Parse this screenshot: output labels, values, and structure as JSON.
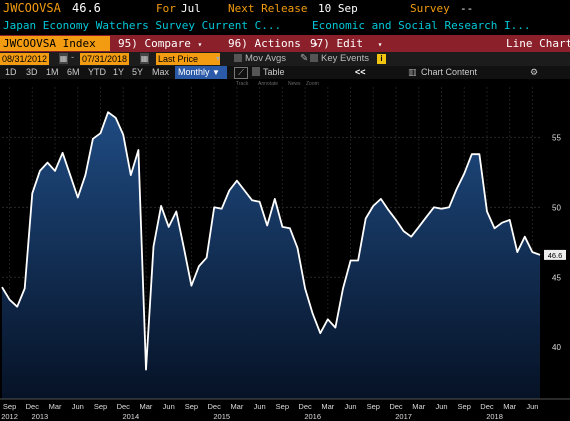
{
  "header": {
    "ticker": "JWCOOVSA",
    "last_value": "46.6",
    "for_label": "For",
    "for_period": "Jul",
    "next_release_label": "Next Release",
    "next_release_date": "10 Sep",
    "survey_label": "Survey",
    "survey_value": "--"
  },
  "subtitle": {
    "series_name": "Japan Economy Watchers Survey Current C...",
    "source": "Economic and Social Research I..."
  },
  "menubar": {
    "security": "JWCOOVSA Index",
    "compare": "95) Compare",
    "actions": "96) Actions",
    "edit": "97) Edit",
    "chart_type": "Line Chart"
  },
  "toolbar": {
    "start_date": "08/31/2012",
    "end_date": "07/31/2018",
    "field": "Last Price",
    "mov_avgs": "Mov Avgs",
    "key_events": "Key Events",
    "info": "i"
  },
  "periods": {
    "buttons": [
      "1D",
      "3D",
      "1M",
      "6M",
      "YTD",
      "1Y",
      "5Y",
      "Max"
    ],
    "frequency": "Monthly",
    "table": "Table",
    "collapse": "<<",
    "chart_content": "Chart Content"
  },
  "legend_tools": [
    "Track",
    "Annotate",
    "News",
    "Zoom"
  ],
  "colors": {
    "accent": "#f39c12",
    "menubar": "#8b1f2a",
    "cyan": "#00c8d8",
    "fill_top": "#1f4b82",
    "fill_bottom": "#061226"
  },
  "chart_data": {
    "type": "area",
    "title": "",
    "xlabel": "",
    "ylabel": "",
    "ylim": [
      36.3,
      58.6
    ],
    "yticks": [
      40,
      45,
      50,
      55
    ],
    "grid": true,
    "x": [
      "2012-08",
      "2012-09",
      "2012-10",
      "2012-11",
      "2012-12",
      "2013-01",
      "2013-02",
      "2013-03",
      "2013-04",
      "2013-05",
      "2013-06",
      "2013-07",
      "2013-08",
      "2013-09",
      "2013-10",
      "2013-11",
      "2013-12",
      "2014-01",
      "2014-02",
      "2014-03",
      "2014-04",
      "2014-05",
      "2014-06",
      "2014-07",
      "2014-08",
      "2014-09",
      "2014-10",
      "2014-11",
      "2014-12",
      "2015-01",
      "2015-02",
      "2015-03",
      "2015-04",
      "2015-05",
      "2015-06",
      "2015-07",
      "2015-08",
      "2015-09",
      "2015-10",
      "2015-11",
      "2015-12",
      "2016-01",
      "2016-02",
      "2016-03",
      "2016-04",
      "2016-05",
      "2016-06",
      "2016-07",
      "2016-08",
      "2016-09",
      "2016-10",
      "2016-11",
      "2016-12",
      "2017-01",
      "2017-02",
      "2017-03",
      "2017-04",
      "2017-05",
      "2017-06",
      "2017-07",
      "2017-08",
      "2017-09",
      "2017-10",
      "2017-11",
      "2017-12",
      "2018-01",
      "2018-02",
      "2018-03",
      "2018-04",
      "2018-05",
      "2018-06",
      "2018-07"
    ],
    "values": [
      44.3,
      43.4,
      42.9,
      44.2,
      51.0,
      52.6,
      53.2,
      52.6,
      53.9,
      52.3,
      50.7,
      52.3,
      54.9,
      55.3,
      56.8,
      56.4,
      55.2,
      52.3,
      54.1,
      38.4,
      47.2,
      50.1,
      48.6,
      49.7,
      47.1,
      44.4,
      45.8,
      46.4,
      50.0,
      49.9,
      51.2,
      51.9,
      51.2,
      50.5,
      50.4,
      48.7,
      50.6,
      48.6,
      48.5,
      47.1,
      44.2,
      42.4,
      41.0,
      42.0,
      41.4,
      44.2,
      46.2,
      46.2,
      49.2,
      50.1,
      50.6,
      49.8,
      49.1,
      48.3,
      47.9,
      48.6,
      49.3,
      50.0,
      49.9,
      50.0,
      51.3,
      52.4,
      53.8,
      53.8,
      49.7,
      48.5,
      48.9,
      49.1,
      46.8,
      47.9,
      46.8,
      46.6
    ],
    "x_labels": [
      {
        "month": "Sep",
        "index": 1
      },
      {
        "month": "Dec",
        "index": 4
      },
      {
        "month": "Mar",
        "index": 7
      },
      {
        "month": "Jun",
        "index": 10
      },
      {
        "month": "Sep",
        "index": 13
      },
      {
        "month": "Dec",
        "index": 16
      },
      {
        "month": "Mar",
        "index": 19
      },
      {
        "month": "Jun",
        "index": 22
      },
      {
        "month": "Sep",
        "index": 25
      },
      {
        "month": "Dec",
        "index": 28
      },
      {
        "month": "Mar",
        "index": 31
      },
      {
        "month": "Jun",
        "index": 34
      },
      {
        "month": "Sep",
        "index": 37
      },
      {
        "month": "Dec",
        "index": 40
      },
      {
        "month": "Mar",
        "index": 43
      },
      {
        "month": "Jun",
        "index": 46
      },
      {
        "month": "Sep",
        "index": 49
      },
      {
        "month": "Dec",
        "index": 52
      },
      {
        "month": "Mar",
        "index": 55
      },
      {
        "month": "Jun",
        "index": 58
      },
      {
        "month": "Sep",
        "index": 61
      },
      {
        "month": "Dec",
        "index": 64
      },
      {
        "month": "Mar",
        "index": 67
      },
      {
        "month": "Jun",
        "index": 70
      }
    ],
    "year_labels": [
      {
        "year": "2012",
        "index": 1
      },
      {
        "year": "2013",
        "index": 5
      },
      {
        "year": "2014",
        "index": 17
      },
      {
        "year": "2015",
        "index": 29
      },
      {
        "year": "2016",
        "index": 41
      },
      {
        "year": "2017",
        "index": 53
      },
      {
        "year": "2018",
        "index": 65
      }
    ],
    "last_label": "46.6"
  }
}
